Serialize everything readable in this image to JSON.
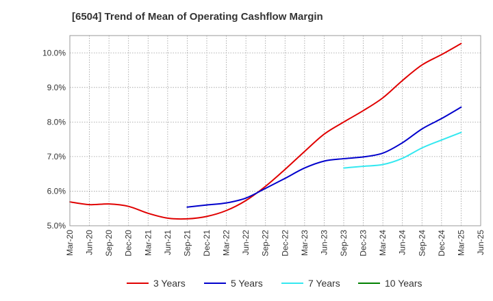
{
  "chart_data": {
    "type": "line",
    "title": "[6504]  Trend of Mean of Operating Cashflow Margin",
    "xlabel": "",
    "ylabel": "",
    "x_ticks": [
      "Mar-20",
      "Jun-20",
      "Sep-20",
      "Dec-20",
      "Mar-21",
      "Jun-21",
      "Sep-21",
      "Dec-21",
      "Mar-22",
      "Jun-22",
      "Sep-22",
      "Dec-22",
      "Mar-23",
      "Jun-23",
      "Sep-23",
      "Dec-23",
      "Mar-24",
      "Jun-24",
      "Sep-24",
      "Dec-24",
      "Mar-25",
      "Jun-25"
    ],
    "y_ticks": [
      "5.0%",
      "6.0%",
      "7.0%",
      "8.0%",
      "9.0%",
      "10.0%"
    ],
    "ylim": [
      5.0,
      10.5
    ],
    "grid": true,
    "legend_position": "bottom",
    "series": [
      {
        "name": "3 Years",
        "color": "#e00000",
        "points": [
          [
            "Mar-20",
            5.69
          ],
          [
            "Jun-20",
            5.61
          ],
          [
            "Sep-20",
            5.63
          ],
          [
            "Dec-20",
            5.56
          ],
          [
            "Mar-21",
            5.36
          ],
          [
            "Jun-21",
            5.22
          ],
          [
            "Sep-21",
            5.2
          ],
          [
            "Dec-21",
            5.27
          ],
          [
            "Mar-22",
            5.44
          ],
          [
            "Jun-22",
            5.73
          ],
          [
            "Sep-22",
            6.14
          ],
          [
            "Dec-22",
            6.63
          ],
          [
            "Mar-23",
            7.15
          ],
          [
            "Jun-23",
            7.65
          ],
          [
            "Sep-23",
            8.0
          ],
          [
            "Dec-23",
            8.33
          ],
          [
            "Mar-24",
            8.7
          ],
          [
            "Jun-24",
            9.2
          ],
          [
            "Sep-24",
            9.65
          ],
          [
            "Dec-24",
            9.95
          ],
          [
            "Mar-25",
            10.27
          ]
        ]
      },
      {
        "name": "5 Years",
        "color": "#0000cc",
        "points": [
          [
            "Sep-21",
            5.54
          ],
          [
            "Dec-21",
            5.6
          ],
          [
            "Mar-22",
            5.66
          ],
          [
            "Jun-22",
            5.8
          ],
          [
            "Sep-22",
            6.08
          ],
          [
            "Dec-22",
            6.37
          ],
          [
            "Mar-23",
            6.67
          ],
          [
            "Jun-23",
            6.87
          ],
          [
            "Sep-23",
            6.94
          ],
          [
            "Dec-23",
            6.99
          ],
          [
            "Mar-24",
            7.1
          ],
          [
            "Jun-24",
            7.4
          ],
          [
            "Sep-24",
            7.8
          ],
          [
            "Dec-24",
            8.1
          ],
          [
            "Mar-25",
            8.43
          ]
        ]
      },
      {
        "name": "7 Years",
        "color": "#33e8f0",
        "points": [
          [
            "Sep-23",
            6.67
          ],
          [
            "Dec-23",
            6.72
          ],
          [
            "Mar-24",
            6.77
          ],
          [
            "Jun-24",
            6.95
          ],
          [
            "Sep-24",
            7.25
          ],
          [
            "Dec-24",
            7.48
          ],
          [
            "Mar-25",
            7.7
          ]
        ]
      },
      {
        "name": "10 Years",
        "color": "#008000",
        "points": []
      }
    ]
  }
}
